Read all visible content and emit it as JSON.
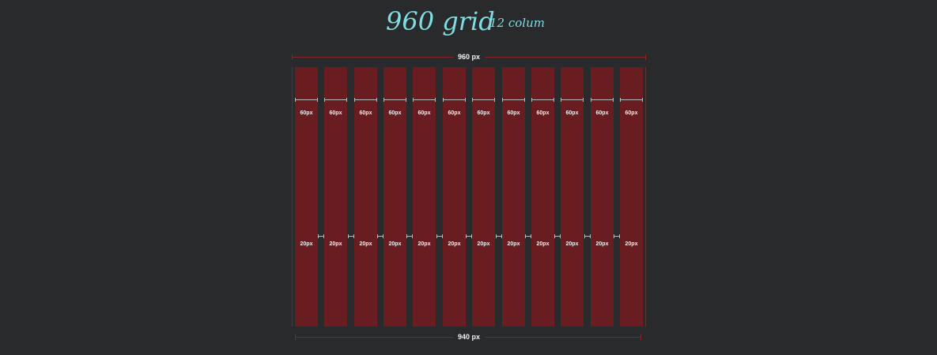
{
  "header": {
    "title": "960 grid",
    "subtitle": "12 colum"
  },
  "top_dimension": {
    "label": "960 px"
  },
  "bottom_dimension": {
    "label": "940 px"
  },
  "columns": [
    {
      "width_label": "60px",
      "gutter_label": "20px"
    },
    {
      "width_label": "60px",
      "gutter_label": "20px"
    },
    {
      "width_label": "60px",
      "gutter_label": "20px"
    },
    {
      "width_label": "60px",
      "gutter_label": "20px"
    },
    {
      "width_label": "60px",
      "gutter_label": "20px"
    },
    {
      "width_label": "60px",
      "gutter_label": "20px"
    },
    {
      "width_label": "60px",
      "gutter_label": "20px"
    },
    {
      "width_label": "60px",
      "gutter_label": "20px"
    },
    {
      "width_label": "60px",
      "gutter_label": "20px"
    },
    {
      "width_label": "60px",
      "gutter_label": "20px"
    },
    {
      "width_label": "60px",
      "gutter_label": "20px"
    },
    {
      "width_label": "60px",
      "gutter_label": "20px"
    }
  ],
  "colors": {
    "background": "#292a2c",
    "column": "#6a1d20",
    "title": "#7fdde2",
    "dimension_line": "#8c2226"
  }
}
